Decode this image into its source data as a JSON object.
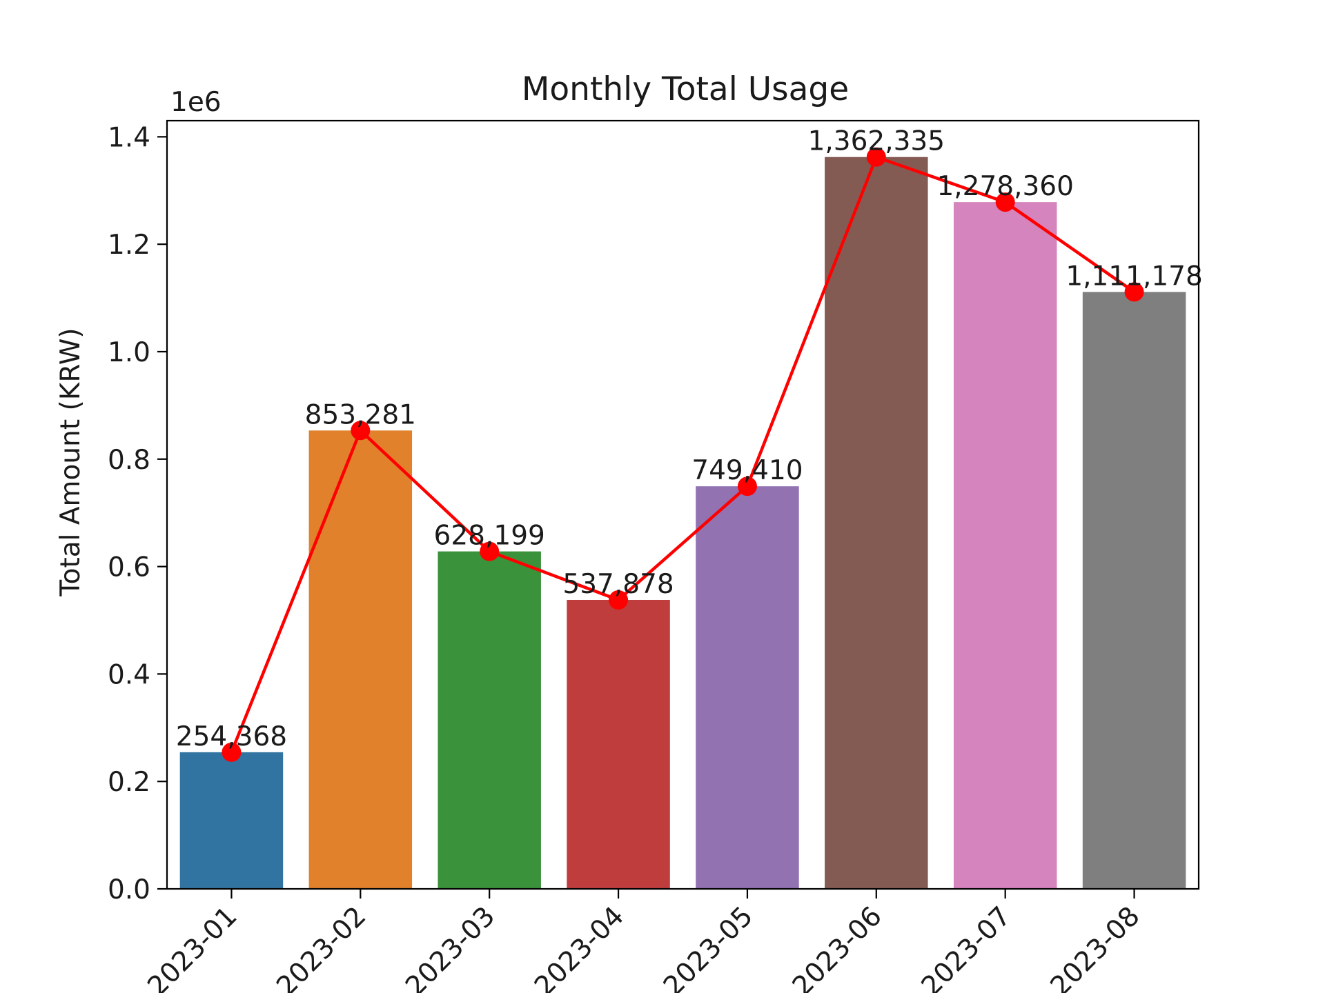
{
  "chart_data": {
    "type": "bar",
    "title": "Monthly Total Usage",
    "xlabel": "",
    "ylabel": "Total Amount (KRW)",
    "y_scale_label": "1e6",
    "ylim": [
      0,
      1430000
    ],
    "yticks": [
      0.0,
      0.2,
      0.4,
      0.6,
      0.8,
      1.0,
      1.2,
      1.4
    ],
    "ytick_labels": [
      "0.0",
      "0.2",
      "0.4",
      "0.6",
      "0.8",
      "1.0",
      "1.2",
      "1.4"
    ],
    "ytick_multiplier": 1000000,
    "categories": [
      "2023-01",
      "2023-02",
      "2023-03",
      "2023-04",
      "2023-05",
      "2023-06",
      "2023-07",
      "2023-08"
    ],
    "values": [
      254368,
      853281,
      628199,
      537878,
      749410,
      1362335,
      1278360,
      1111178
    ],
    "value_labels": [
      "254,368",
      "853,281",
      "628,199",
      "537,878",
      "749,410",
      "1,362,335",
      "1,278,360",
      "1,111,178"
    ],
    "bar_colors": [
      "#3274a1",
      "#e1812c",
      "#3a923a",
      "#c03d3e",
      "#9372b2",
      "#845b53",
      "#d684bd",
      "#7f7f7f"
    ],
    "line_overlay": {
      "color": "#ff0000",
      "marker": "circle"
    },
    "grid": false,
    "legend": "none",
    "x_tick_rotation": -45
  }
}
